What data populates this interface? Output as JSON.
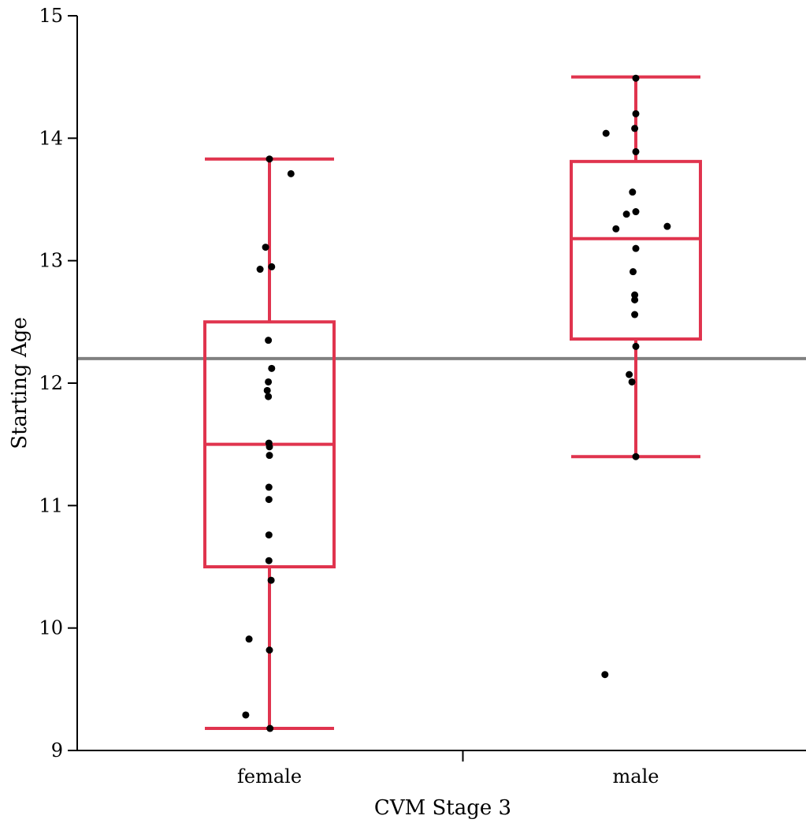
{
  "chart_data": {
    "type": "box",
    "title": "",
    "xlabel": "CVM Stage 3",
    "ylabel": "Starting Age",
    "ylim": [
      9,
      15
    ],
    "yticks": [
      9,
      10,
      11,
      12,
      13,
      14,
      15
    ],
    "categories": [
      "female",
      "male"
    ],
    "reference_line": {
      "y": 12.2,
      "color": "#808080"
    },
    "box_color": "#e0344e",
    "point_color": "#000000",
    "grid": false,
    "groups": [
      {
        "name": "female",
        "whisker_low": 9.18,
        "q1": 10.5,
        "median": 11.5,
        "q3": 12.5,
        "whisker_high": 13.83,
        "points": [
          {
            "jitter": 0.0,
            "y": 13.83
          },
          {
            "jitter": 0.39,
            "y": 13.71
          },
          {
            "jitter": -0.07,
            "y": 13.11
          },
          {
            "jitter": -0.17,
            "y": 12.93
          },
          {
            "jitter": 0.04,
            "y": 12.95
          },
          {
            "jitter": -0.02,
            "y": 12.35
          },
          {
            "jitter": 0.04,
            "y": 12.12
          },
          {
            "jitter": -0.02,
            "y": 12.01
          },
          {
            "jitter": -0.04,
            "y": 11.94
          },
          {
            "jitter": -0.02,
            "y": 11.89
          },
          {
            "jitter": -0.01,
            "y": 11.51
          },
          {
            "jitter": 0.0,
            "y": 11.48
          },
          {
            "jitter": 0.0,
            "y": 11.41
          },
          {
            "jitter": -0.01,
            "y": 11.15
          },
          {
            "jitter": -0.01,
            "y": 11.05
          },
          {
            "jitter": -0.01,
            "y": 10.76
          },
          {
            "jitter": -0.01,
            "y": 10.55
          },
          {
            "jitter": 0.03,
            "y": 10.39
          },
          {
            "jitter": -0.37,
            "y": 9.91
          },
          {
            "jitter": 0.0,
            "y": 9.82
          },
          {
            "jitter": -0.43,
            "y": 9.29
          },
          {
            "jitter": 0.01,
            "y": 9.18
          }
        ]
      },
      {
        "name": "male",
        "whisker_low": 11.4,
        "q1": 12.36,
        "median": 13.18,
        "q3": 13.81,
        "whisker_high": 14.5,
        "points": [
          {
            "jitter": 0.0,
            "y": 14.49
          },
          {
            "jitter": 0.0,
            "y": 14.2
          },
          {
            "jitter": -0.54,
            "y": 14.04
          },
          {
            "jitter": -0.02,
            "y": 14.08
          },
          {
            "jitter": 0.0,
            "y": 13.89
          },
          {
            "jitter": -0.06,
            "y": 13.56
          },
          {
            "jitter": -0.17,
            "y": 13.38
          },
          {
            "jitter": 0.0,
            "y": 13.4
          },
          {
            "jitter": -0.36,
            "y": 13.26
          },
          {
            "jitter": 0.57,
            "y": 13.28
          },
          {
            "jitter": 0.0,
            "y": 13.1
          },
          {
            "jitter": -0.05,
            "y": 12.91
          },
          {
            "jitter": -0.02,
            "y": 12.72
          },
          {
            "jitter": -0.02,
            "y": 12.68
          },
          {
            "jitter": -0.02,
            "y": 12.56
          },
          {
            "jitter": 0.0,
            "y": 12.3
          },
          {
            "jitter": -0.12,
            "y": 12.07
          },
          {
            "jitter": -0.07,
            "y": 12.01
          },
          {
            "jitter": 0.0,
            "y": 11.4
          },
          {
            "jitter": -0.56,
            "y": 9.62
          }
        ]
      }
    ]
  }
}
